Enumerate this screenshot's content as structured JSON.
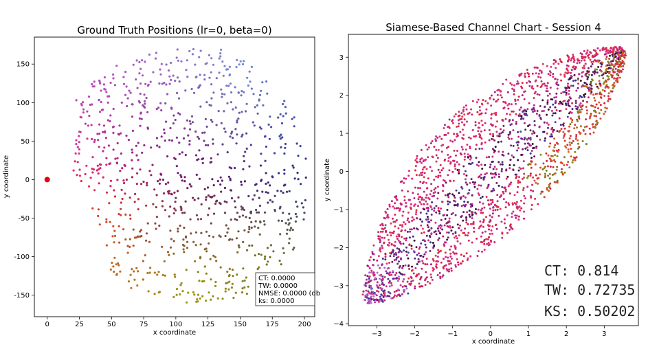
{
  "chart_data": [
    {
      "type": "scatter",
      "title": "Ground Truth Positions (lr=0, beta=0)",
      "xlabel": "x coordinate",
      "ylabel": "y coordinate",
      "xlim": [
        -10,
        208
      ],
      "ylim": [
        -178,
        185
      ],
      "xticks": [
        0,
        25,
        50,
        75,
        100,
        125,
        150,
        175,
        200
      ],
      "yticks": [
        -150,
        -100,
        -50,
        0,
        50,
        100,
        150
      ],
      "grid": false,
      "highlight_point": {
        "x": 0,
        "y": 0,
        "color": "#e8000b"
      },
      "point_region": {
        "x_range": [
          20,
          202
        ],
        "y_range": [
          -160,
          170
        ],
        "count": 900
      },
      "color_encoding": "hue varies with angle around (110, 0): blue at right, purple at top, pink/red at left, orange/olive at bottom",
      "info_box": {
        "lines": [
          "CT: 0.0000",
          "TW: 0.0000",
          "NMSE: 0.0000 (db",
          "ks: 0.0000"
        ]
      }
    },
    {
      "type": "scatter",
      "title": "Siamese-Based Channel Chart - Session 4",
      "xlabel": "x coordinate",
      "ylabel": "y coordinate",
      "xlim": [
        -3.75,
        3.9
      ],
      "ylim": [
        -4.05,
        3.6
      ],
      "xticks": [
        -3,
        -2,
        -1,
        0,
        1,
        2,
        3
      ],
      "yticks": [
        -4,
        -3,
        -2,
        -1,
        0,
        1,
        2,
        3
      ],
      "grid": false,
      "point_region": {
        "shape": "diagonal lens from (-3.3, -3.4) to (3.5, 3.2)",
        "count": 2300
      },
      "metrics": {
        "lines": [
          "CT: 0.814",
          "TW: 0.72735",
          "KS: 0.50202"
        ]
      }
    }
  ]
}
